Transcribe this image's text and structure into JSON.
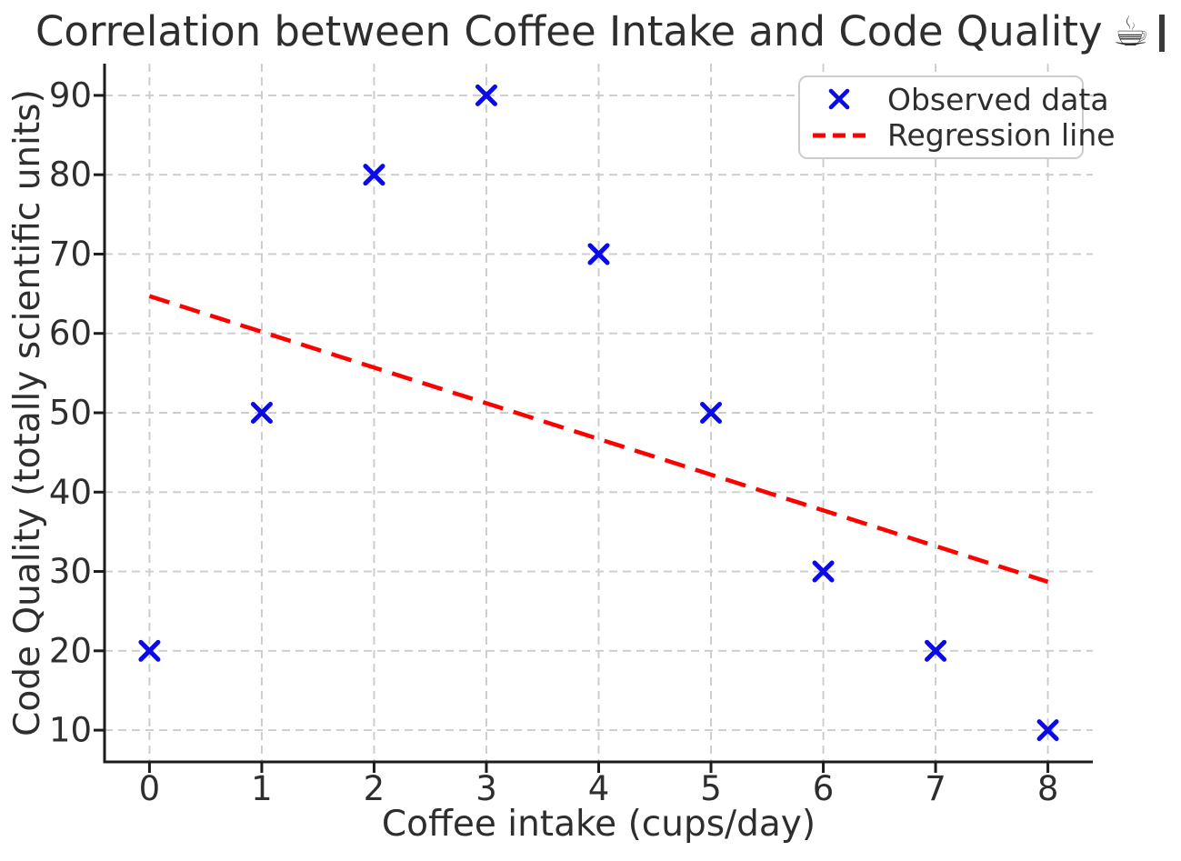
{
  "chart_data": {
    "type": "scatter",
    "title_text": "Correlation between Coffee Intake and Code Quality",
    "title_emoji": "☕",
    "title_has_missing_glyph_box": true,
    "title_full": "Correlation between Coffee Intake and Code Quality ☕▯",
    "xlabel": "Coffee intake (cups/day)",
    "ylabel": "Code Quality (totally scientific units)",
    "x_ticks": [
      0,
      1,
      2,
      3,
      4,
      5,
      6,
      7,
      8
    ],
    "y_ticks": [
      10,
      20,
      30,
      40,
      50,
      60,
      70,
      80,
      90
    ],
    "xlim": [
      -0.4,
      8.4
    ],
    "ylim": [
      6,
      94
    ],
    "grid": true,
    "grid_style": "dashed",
    "legend_position": "upper right",
    "series": [
      {
        "name": "Observed data",
        "kind": "scatter",
        "marker": "x",
        "color": "#0b0be6",
        "x": [
          0,
          1,
          2,
          3,
          4,
          5,
          6,
          7,
          8
        ],
        "y": [
          20,
          50,
          80,
          90,
          70,
          50,
          30,
          20,
          10
        ]
      },
      {
        "name": "Regression line",
        "kind": "line",
        "linestyle": "dashed",
        "color": "#ff0000",
        "x": [
          0,
          8
        ],
        "y": [
          64.7,
          28.7
        ]
      }
    ],
    "style": {
      "background": "#ffffff",
      "text_color": "#2e2e2e",
      "grid_color": "#cccccc",
      "spine_color": "#1c1c1c",
      "legend_border_color": "#cccccc",
      "tick_font_size": 37,
      "label_font_size": 39,
      "title_font_size": 45,
      "legend_font_size": 33
    }
  }
}
